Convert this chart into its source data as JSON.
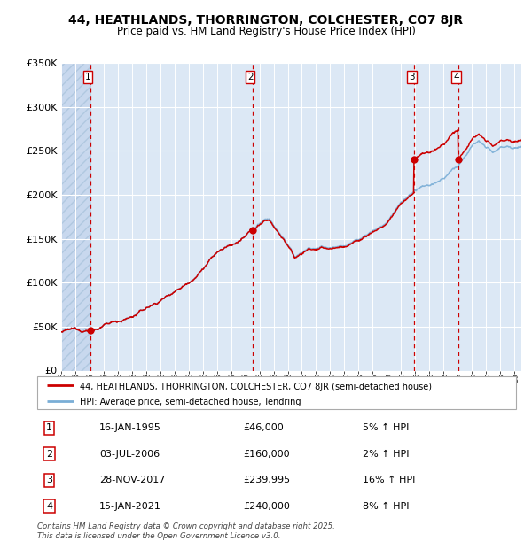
{
  "title": "44, HEATHLANDS, THORRINGTON, COLCHESTER, CO7 8JR",
  "subtitle": "Price paid vs. HM Land Registry's House Price Index (HPI)",
  "legend_line1": "44, HEATHLANDS, THORRINGTON, COLCHESTER, CO7 8JR (semi-detached house)",
  "legend_line2": "HPI: Average price, semi-detached house, Tendring",
  "footer_line1": "Contains HM Land Registry data © Crown copyright and database right 2025.",
  "footer_line2": "This data is licensed under the Open Government Licence v3.0.",
  "transactions": [
    {
      "num": 1,
      "date": "16-JAN-1995",
      "price": "£46,000",
      "hpi": "5% ↑ HPI",
      "year": 1995.04,
      "price_val": 46000
    },
    {
      "num": 2,
      "date": "03-JUL-2006",
      "price": "£160,000",
      "hpi": "2% ↑ HPI",
      "year": 2006.5,
      "price_val": 160000
    },
    {
      "num": 3,
      "date": "28-NOV-2017",
      "price": "£239,995",
      "hpi": "16% ↑ HPI",
      "year": 2017.91,
      "price_val": 239995
    },
    {
      "num": 4,
      "date": "15-JAN-2021",
      "price": "£240,000",
      "hpi": "8% ↑ HPI",
      "year": 2021.04,
      "price_val": 240000
    }
  ],
  "red_line_color": "#cc0000",
  "blue_line_color": "#7aaed6",
  "marker_color": "#cc0000",
  "vline_color": "#cc0000",
  "bg_color": "#dce8f5",
  "grid_color": "#ffffff",
  "xmin": 1993.0,
  "xmax": 2025.5,
  "ymin": 0,
  "ymax": 350000,
  "yticks": [
    0,
    50000,
    100000,
    150000,
    200000,
    250000,
    300000,
    350000
  ],
  "ytick_labels": [
    "£0",
    "£50K",
    "£100K",
    "£150K",
    "£200K",
    "£250K",
    "£300K",
    "£350K"
  ]
}
